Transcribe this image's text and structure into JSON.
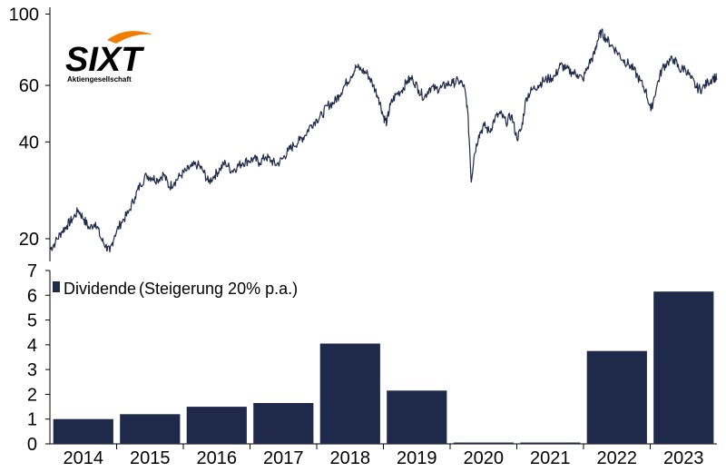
{
  "logo": {
    "text": "SIXT",
    "subtitle": "Aktiengesellschaft",
    "accent_color": "#f07d00"
  },
  "chart_data": [
    {
      "type": "line",
      "name": "price",
      "scale": "log",
      "ylim": [
        17,
        105
      ],
      "yticks": [
        20,
        40,
        60,
        100
      ],
      "xlim": [
        2014.0,
        2023.8
      ],
      "color": "#1f2a4a",
      "points": [
        [
          2014.0,
          18.5
        ],
        [
          2014.08,
          19.5
        ],
        [
          2014.17,
          21.0
        ],
        [
          2014.25,
          22.0
        ],
        [
          2014.33,
          23.0
        ],
        [
          2014.42,
          24.5
        ],
        [
          2014.5,
          23.0
        ],
        [
          2014.58,
          21.5
        ],
        [
          2014.67,
          22.5
        ],
        [
          2014.75,
          20.0
        ],
        [
          2014.82,
          19.0
        ],
        [
          2014.88,
          18.2
        ],
        [
          2014.95,
          20.5
        ],
        [
          2015.05,
          22.5
        ],
        [
          2015.15,
          24.0
        ],
        [
          2015.25,
          27.0
        ],
        [
          2015.33,
          29.5
        ],
        [
          2015.42,
          31.5
        ],
        [
          2015.5,
          31.0
        ],
        [
          2015.58,
          30.5
        ],
        [
          2015.67,
          31.8
        ],
        [
          2015.75,
          29.0
        ],
        [
          2015.83,
          30.0
        ],
        [
          2015.92,
          31.5
        ],
        [
          2016.0,
          32.5
        ],
        [
          2016.08,
          33.5
        ],
        [
          2016.17,
          34.0
        ],
        [
          2016.25,
          32.5
        ],
        [
          2016.33,
          30.0
        ],
        [
          2016.42,
          31.5
        ],
        [
          2016.5,
          33.0
        ],
        [
          2016.58,
          34.5
        ],
        [
          2016.67,
          32.5
        ],
        [
          2016.75,
          33.5
        ],
        [
          2016.83,
          34.5
        ],
        [
          2016.92,
          35.0
        ],
        [
          2017.0,
          35.5
        ],
        [
          2017.08,
          34.5
        ],
        [
          2017.17,
          36.0
        ],
        [
          2017.25,
          35.0
        ],
        [
          2017.33,
          34.0
        ],
        [
          2017.42,
          35.5
        ],
        [
          2017.5,
          37.5
        ],
        [
          2017.58,
          39.0
        ],
        [
          2017.67,
          40.5
        ],
        [
          2017.75,
          42.0
        ],
        [
          2017.83,
          45.0
        ],
        [
          2017.92,
          47.0
        ],
        [
          2018.0,
          48.5
        ],
        [
          2018.08,
          52.0
        ],
        [
          2018.17,
          53.0
        ],
        [
          2018.25,
          56.0
        ],
        [
          2018.33,
          60.0
        ],
        [
          2018.42,
          64.0
        ],
        [
          2018.5,
          68.5
        ],
        [
          2018.58,
          67.0
        ],
        [
          2018.67,
          65.0
        ],
        [
          2018.75,
          60.0
        ],
        [
          2018.83,
          55.0
        ],
        [
          2018.9,
          48.0
        ],
        [
          2018.95,
          46.0
        ],
        [
          2019.0,
          52.0
        ],
        [
          2019.08,
          56.0
        ],
        [
          2019.17,
          58.0
        ],
        [
          2019.25,
          62.0
        ],
        [
          2019.33,
          63.0
        ],
        [
          2019.42,
          58.0
        ],
        [
          2019.5,
          55.0
        ],
        [
          2019.58,
          59.0
        ],
        [
          2019.67,
          58.5
        ],
        [
          2019.75,
          59.0
        ],
        [
          2019.83,
          60.5
        ],
        [
          2019.92,
          61.0
        ],
        [
          2020.0,
          62.0
        ],
        [
          2020.08,
          60.0
        ],
        [
          2020.13,
          52.0
        ],
        [
          2020.19,
          30.0
        ],
        [
          2020.23,
          36.0
        ],
        [
          2020.3,
          42.0
        ],
        [
          2020.38,
          45.0
        ],
        [
          2020.46,
          43.0
        ],
        [
          2020.54,
          47.5
        ],
        [
          2020.62,
          49.0
        ],
        [
          2020.7,
          46.0
        ],
        [
          2020.78,
          48.5
        ],
        [
          2020.86,
          41.0
        ],
        [
          2020.93,
          44.0
        ],
        [
          2021.0,
          55.0
        ],
        [
          2021.08,
          58.0
        ],
        [
          2021.17,
          60.0
        ],
        [
          2021.25,
          62.0
        ],
        [
          2021.33,
          63.0
        ],
        [
          2021.42,
          64.0
        ],
        [
          2021.5,
          69.5
        ],
        [
          2021.58,
          67.5
        ],
        [
          2021.67,
          66.0
        ],
        [
          2021.75,
          65.0
        ],
        [
          2021.83,
          62.5
        ],
        [
          2021.92,
          70.0
        ],
        [
          2022.0,
          75.0
        ],
        [
          2022.04,
          82.0
        ],
        [
          2022.1,
          88.0
        ],
        [
          2022.17,
          84.0
        ],
        [
          2022.25,
          80.0
        ],
        [
          2022.33,
          76.5
        ],
        [
          2022.42,
          72.0
        ],
        [
          2022.5,
          70.0
        ],
        [
          2022.58,
          67.0
        ],
        [
          2022.67,
          62.0
        ],
        [
          2022.75,
          58.0
        ],
        [
          2022.83,
          50.0
        ],
        [
          2022.92,
          60.0
        ],
        [
          2023.0,
          68.0
        ],
        [
          2023.08,
          71.0
        ],
        [
          2023.17,
          72.5
        ],
        [
          2023.25,
          67.0
        ],
        [
          2023.33,
          68.0
        ],
        [
          2023.42,
          63.0
        ],
        [
          2023.5,
          59.0
        ],
        [
          2023.58,
          58.5
        ],
        [
          2023.67,
          61.5
        ],
        [
          2023.75,
          63.5
        ],
        [
          2023.8,
          63.0
        ]
      ]
    },
    {
      "type": "bar",
      "name": "dividend",
      "legend": "Dividende",
      "legend_note": "(Steigerung 20% p.a.)",
      "ylim": [
        0,
        7
      ],
      "yticks": [
        0,
        1,
        2,
        3,
        4,
        5,
        6,
        7
      ],
      "color": "#1f2a4a",
      "categories": [
        "2014",
        "2015",
        "2016",
        "2017",
        "2018",
        "2019",
        "2020",
        "2021",
        "2022",
        "2023"
      ],
      "values": [
        1.0,
        1.2,
        1.5,
        1.65,
        4.05,
        2.15,
        0.05,
        0.05,
        3.75,
        6.15
      ]
    }
  ]
}
